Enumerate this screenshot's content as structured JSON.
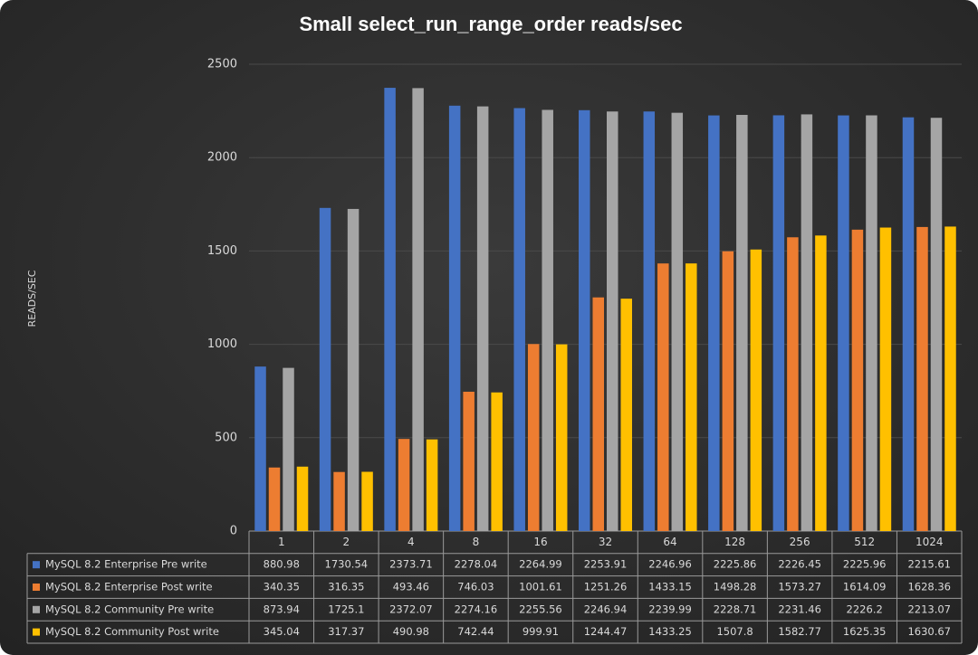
{
  "chart_data": {
    "type": "bar",
    "title": "Small select_run_range_order   reads/sec",
    "y_label": "READS/SEC",
    "categories": [
      "1",
      "2",
      "4",
      "8",
      "16",
      "32",
      "64",
      "128",
      "256",
      "512",
      "1024"
    ],
    "series": [
      {
        "name": "MySQL 8.2 Enterprise Pre write",
        "color": "#4472c4",
        "values": [
          880.98,
          1730.54,
          2373.71,
          2278.04,
          2264.99,
          2253.91,
          2246.96,
          2225.86,
          2226.45,
          2225.96,
          2215.61
        ]
      },
      {
        "name": "MySQL 8.2 Enterprise Post write",
        "color": "#ed7d31",
        "values": [
          340.35,
          316.35,
          493.46,
          746.03,
          1001.61,
          1251.26,
          1433.15,
          1498.28,
          1573.27,
          1614.09,
          1628.36
        ]
      },
      {
        "name": "MySQL 8.2 Community Pre write",
        "color": "#a5a5a5",
        "values": [
          873.94,
          1725.1,
          2372.07,
          2274.16,
          2255.56,
          2246.94,
          2239.99,
          2228.71,
          2231.46,
          2226.2,
          2213.07
        ]
      },
      {
        "name": "MySQL 8.2 Community Post write",
        "color": "#ffc000",
        "values": [
          345.04,
          317.37,
          490.98,
          742.44,
          999.91,
          1244.47,
          1433.25,
          1507.8,
          1582.77,
          1625.35,
          1630.67
        ]
      }
    ],
    "ylim": [
      0,
      2500
    ],
    "yticks": [
      0,
      500,
      1000,
      1500,
      2000,
      2500
    ],
    "grid": true
  }
}
